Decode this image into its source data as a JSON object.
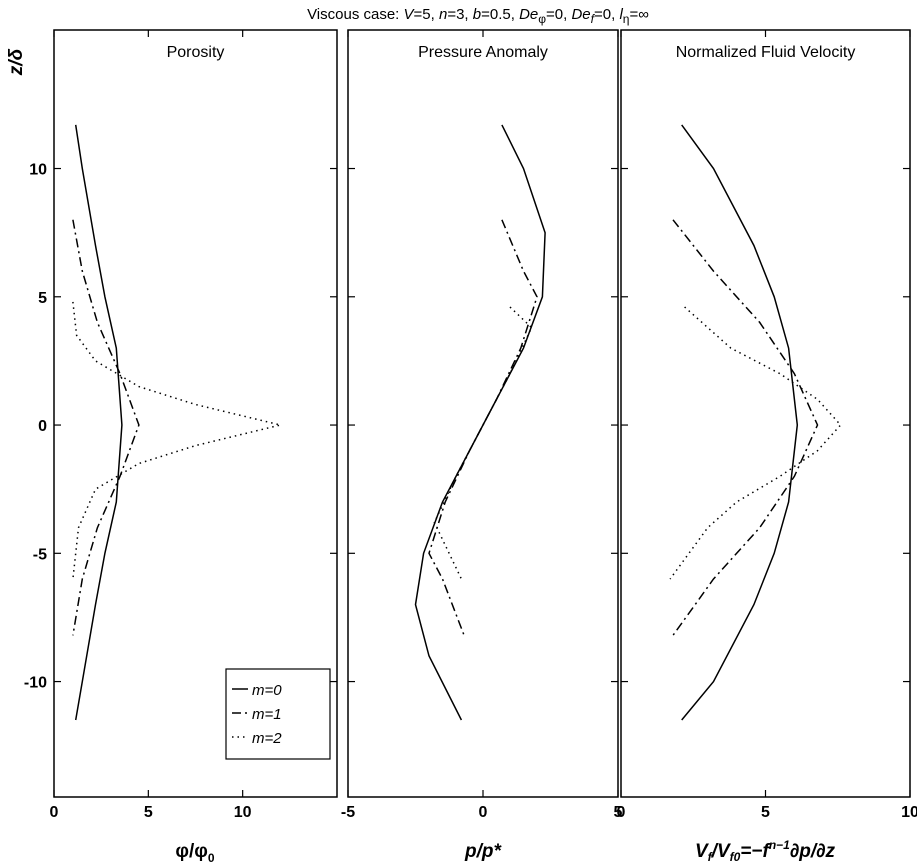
{
  "chart_data": [
    {
      "type": "line",
      "title": "Porosity",
      "xlabel": [
        "φ/φ",
        "0"
      ],
      "ylabel": "z/δ",
      "xlim": [
        0,
        15
      ],
      "ylim": [
        -14.5,
        15.4
      ],
      "xticks": [
        0,
        5,
        10
      ],
      "yticks": [
        -10,
        -5,
        0,
        5,
        10
      ],
      "legend": "lower right",
      "series": [
        {
          "name": "m=0",
          "color": "#000000",
          "linestyle": "solid",
          "values": [
            1.15,
            1.5,
            2.2,
            2.7,
            3.3,
            3.6,
            3.3,
            2.7,
            2.2,
            1.5,
            1.15
          ],
          "z": [
            11.7,
            10,
            7,
            5,
            3,
            0,
            -3,
            -5,
            -7,
            -10,
            -11.5
          ]
        },
        {
          "name": "m=1",
          "color": "#000000",
          "linestyle": "dashdot",
          "values": [
            1.0,
            1.5,
            2.3,
            3.5,
            4.5,
            3.5,
            2.3,
            1.5,
            1.0
          ],
          "z": [
            8,
            6,
            4,
            2,
            0,
            -2,
            -4,
            -6,
            -8.2
          ]
        },
        {
          "name": "m=2",
          "color": "#000000",
          "linestyle": "dotted",
          "values": [
            1.0,
            1.2,
            2.2,
            4.5,
            7.5,
            12,
            7.5,
            4.5,
            2.2,
            1.3,
            1.0
          ],
          "z": [
            4.8,
            3.5,
            2.5,
            1.5,
            0.8,
            0,
            -0.8,
            -1.5,
            -2.5,
            -4,
            -6
          ]
        }
      ]
    },
    {
      "type": "line",
      "title": "Pressure Anomaly",
      "xlabel": [
        "p/p*"
      ],
      "xlim": [
        -5,
        5
      ],
      "ylim": [
        -14.5,
        15.4
      ],
      "xticks": [
        -5,
        0,
        5
      ],
      "yticks": [
        -10,
        -5,
        0,
        5,
        10
      ],
      "series": [
        {
          "name": "m=0",
          "color": "#000000",
          "linestyle": "solid",
          "values": [
            0.7,
            1.5,
            2.3,
            2.2,
            1.5,
            0,
            -1.5,
            -2.2,
            -2.5,
            -2.0,
            -0.8
          ],
          "z": [
            11.7,
            10,
            7.5,
            5,
            3,
            0,
            -3,
            -5,
            -7,
            -9,
            -11.5
          ]
        },
        {
          "name": "m=1",
          "color": "#000000",
          "linestyle": "dashdot",
          "values": [
            0.7,
            1.5,
            2.0,
            1.4,
            0.5,
            0,
            -0.5,
            -1.4,
            -2.0,
            -1.5,
            -0.7
          ],
          "z": [
            8,
            6,
            5,
            3,
            1,
            0,
            -1,
            -3,
            -5,
            -6,
            -8.2
          ]
        },
        {
          "name": "m=2",
          "color": "#000000",
          "linestyle": "dotted",
          "values": [
            1.0,
            1.8,
            1.0,
            0,
            -1.0,
            -1.8,
            -0.8
          ],
          "z": [
            4.6,
            3.8,
            2,
            0,
            -2,
            -3.8,
            -6
          ]
        }
      ]
    },
    {
      "type": "line",
      "title": "Normalized Fluid Velocity",
      "xlabel": [
        "V",
        "f",
        "/V",
        "f0",
        "=−",
        "f",
        "n−1",
        "∂p/∂z"
      ],
      "xlim": [
        0,
        10
      ],
      "ylim": [
        -14.5,
        15.4
      ],
      "xticks": [
        0,
        5,
        10
      ],
      "yticks": [
        -10,
        -5,
        0,
        5,
        10
      ],
      "series": [
        {
          "name": "m=0",
          "color": "#000000",
          "linestyle": "solid",
          "values": [
            2.1,
            3.2,
            4.6,
            5.3,
            5.8,
            6.1,
            5.8,
            5.3,
            4.6,
            3.2,
            2.1
          ],
          "z": [
            11.7,
            10,
            7,
            5,
            3,
            0,
            -3,
            -5,
            -7,
            -10,
            -11.5
          ]
        },
        {
          "name": "m=1",
          "color": "#000000",
          "linestyle": "dashdot",
          "values": [
            1.8,
            3.2,
            4.8,
            6.0,
            6.8,
            6.0,
            4.8,
            3.2,
            1.8
          ],
          "z": [
            8,
            6,
            4,
            2,
            0,
            -2,
            -4,
            -6,
            -8.2
          ]
        },
        {
          "name": "m=2",
          "color": "#000000",
          "linestyle": "dotted",
          "values": [
            2.2,
            3.8,
            5.5,
            6.8,
            7.6,
            6.8,
            5.5,
            4.0,
            3.0,
            1.7
          ],
          "z": [
            4.6,
            3,
            2,
            1,
            0,
            -1,
            -2,
            -3,
            -4,
            -6
          ]
        }
      ]
    }
  ],
  "title": [
    "Viscous case: ",
    "V",
    "=5, ",
    "n",
    "=3, ",
    "b",
    "=0.5, ",
    "De",
    "φ",
    "=0, ",
    "De",
    "f",
    "=0, ",
    "l",
    "η",
    "=∞"
  ]
}
